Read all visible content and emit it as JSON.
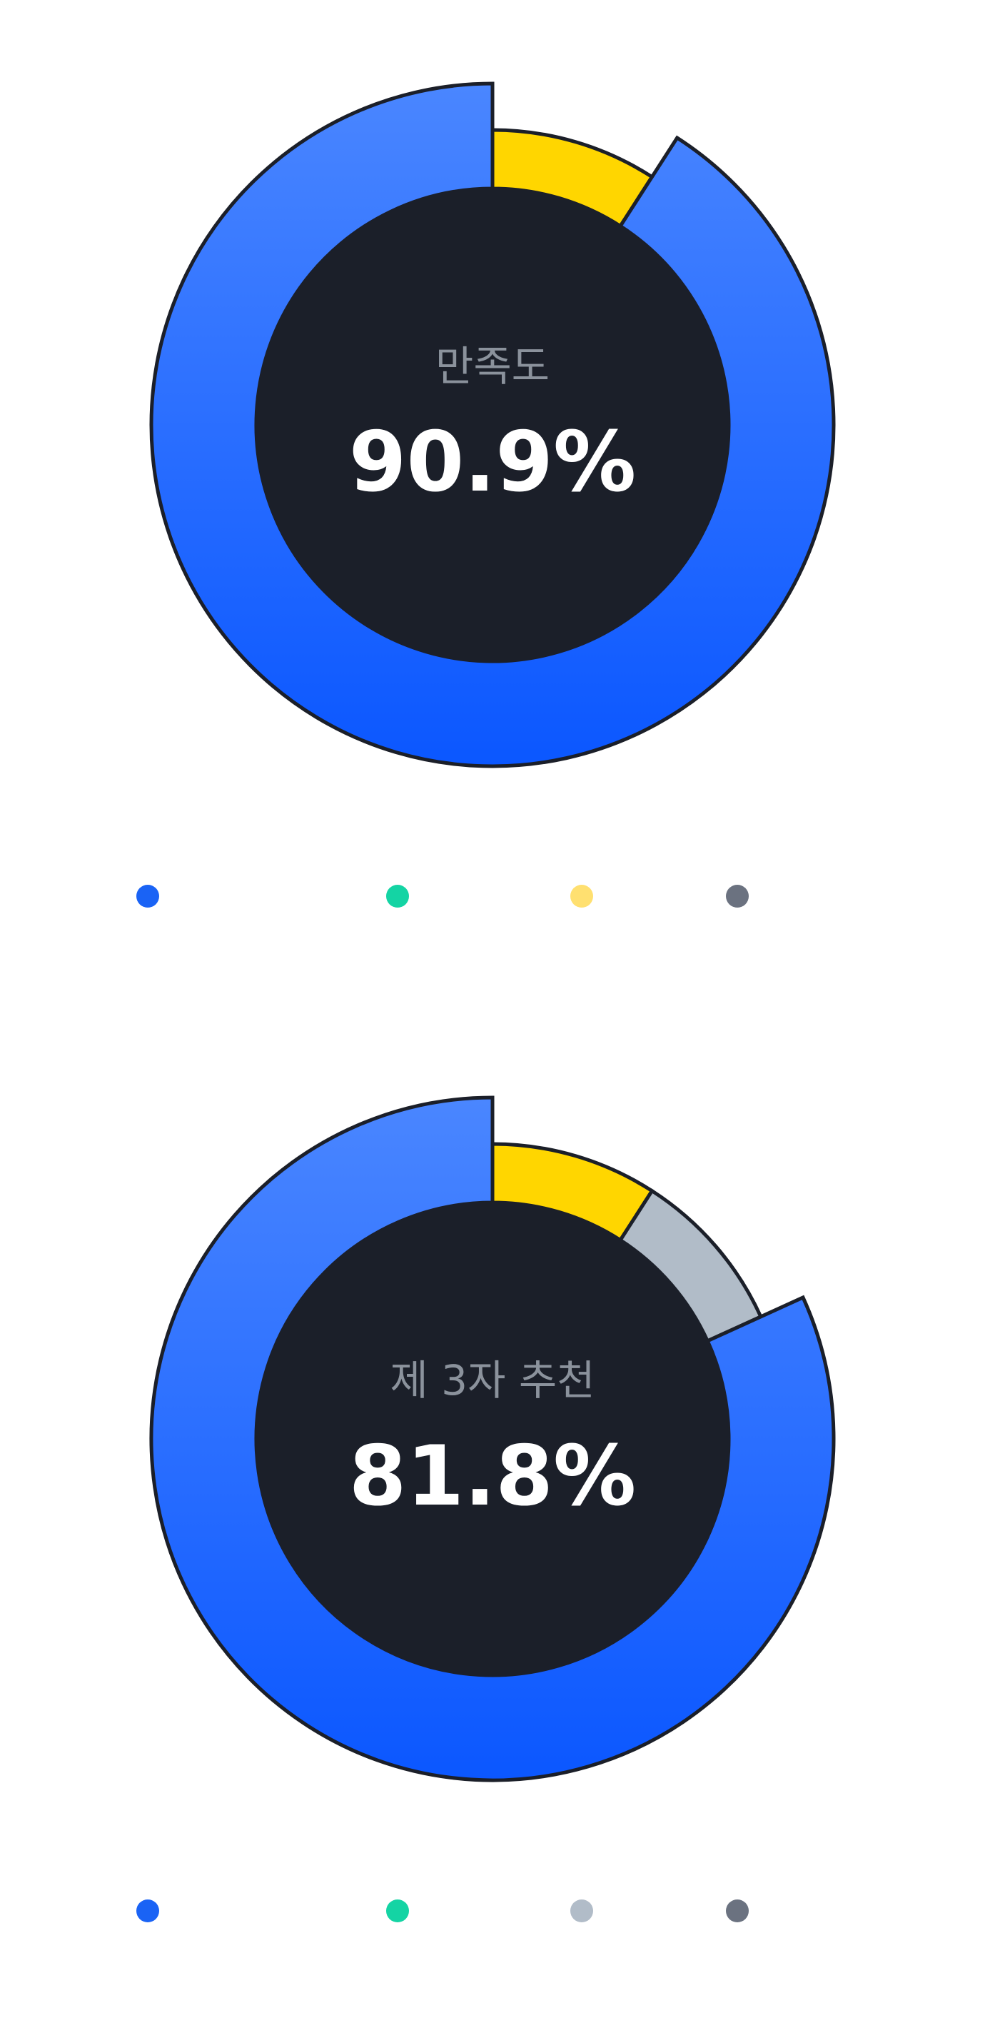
{
  "chart_data": [
    {
      "type": "pie",
      "title": "만족도",
      "center_value": "90.9%",
      "start_angle_deg": 0,
      "direction": "clockwise",
      "slices": [
        {
          "value": 0.091,
          "color": "#ffd600",
          "radius_scale": "inner"
        },
        {
          "value": 0.909,
          "color_top": "#4a86ff",
          "color_bottom": "#0b57ff",
          "radius_scale": "outer"
        }
      ],
      "legend": [
        {
          "color": "#1a63f5"
        },
        {
          "color": "#14d4a4"
        },
        {
          "color": "#ffe070"
        },
        {
          "color": "#6b7280"
        }
      ]
    },
    {
      "type": "pie",
      "title": "제 3자 추천",
      "center_value": "81.8%",
      "start_angle_deg": 0,
      "direction": "clockwise",
      "slices": [
        {
          "value": 0.091,
          "color": "#ffd600",
          "radius_scale": "inner"
        },
        {
          "value": 0.091,
          "color": "#b1bcc8",
          "radius_scale": "inner"
        },
        {
          "value": 0.818,
          "color_top": "#4a86ff",
          "color_bottom": "#0b57ff",
          "radius_scale": "outer"
        }
      ],
      "legend": [
        {
          "color": "#1a63f5"
        },
        {
          "color": "#14d4a4"
        },
        {
          "color": "#b1bcc8"
        },
        {
          "color": "#6b7280"
        }
      ]
    }
  ],
  "theme": {
    "hole_color": "#1b1f29",
    "stroke_color": "#1b1f29",
    "label_color": "#8b929c",
    "value_color": "#ffffff"
  }
}
